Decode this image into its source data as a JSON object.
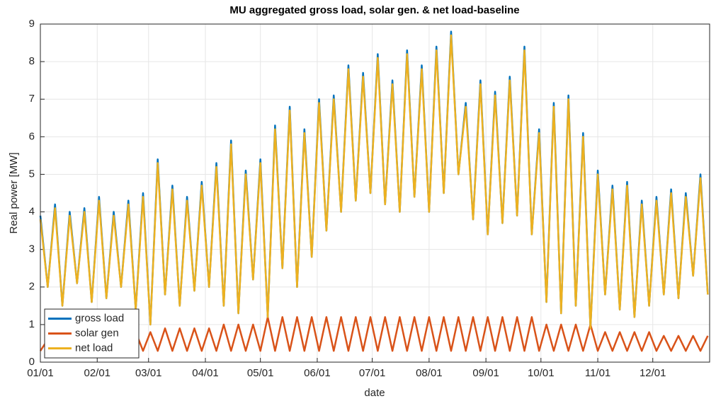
{
  "chart_data": {
    "type": "line",
    "title": "MU aggregated gross load, solar gen. & net load-baseline",
    "xlabel": "date",
    "ylabel": "Real power [MW]",
    "x": [
      0,
      4,
      8,
      12,
      16,
      20,
      24,
      28,
      32,
      36,
      40,
      44,
      48,
      52,
      56,
      60,
      64,
      68,
      72,
      76,
      80,
      84,
      88,
      92,
      96,
      100,
      104,
      108,
      112,
      116,
      120,
      124,
      128,
      132,
      136,
      140,
      144,
      148,
      152,
      156,
      160,
      164,
      168,
      172,
      176,
      180,
      184,
      188,
      192,
      196,
      200,
      204,
      208,
      212,
      216,
      220,
      224,
      228,
      232,
      236,
      240,
      244,
      248,
      252,
      256,
      260,
      264,
      268,
      272,
      276,
      280,
      284,
      288,
      292,
      296,
      300,
      304,
      308,
      312,
      316,
      320,
      324,
      328,
      332,
      336,
      340,
      344,
      348,
      352,
      356,
      360,
      364
    ],
    "series": [
      {
        "name": "gross load",
        "color": "#0072bd",
        "values": [
          3.9,
          2.0,
          4.2,
          1.5,
          4.0,
          2.1,
          4.1,
          1.6,
          4.4,
          1.7,
          4.0,
          2.0,
          4.3,
          1.4,
          4.5,
          1.0,
          5.4,
          1.8,
          4.7,
          1.5,
          4.4,
          1.9,
          4.8,
          2.0,
          5.3,
          1.5,
          5.9,
          1.3,
          5.1,
          2.2,
          5.4,
          1.2,
          6.3,
          2.5,
          6.8,
          2.0,
          6.2,
          2.8,
          7.0,
          3.5,
          7.1,
          4.0,
          7.9,
          4.3,
          7.7,
          4.5,
          8.2,
          4.2,
          7.5,
          4.0,
          8.3,
          4.4,
          7.9,
          4.0,
          8.4,
          4.5,
          8.8,
          5.0,
          6.9,
          3.8,
          7.5,
          3.4,
          7.2,
          3.7,
          7.6,
          3.9,
          8.4,
          3.4,
          6.2,
          1.6,
          6.9,
          1.3,
          7.1,
          1.5,
          6.1,
          0.9,
          5.1,
          1.8,
          4.7,
          1.4,
          4.8,
          1.2,
          4.3,
          1.5,
          4.4,
          1.8,
          4.6,
          1.7,
          4.5,
          2.3,
          5.0,
          1.8
        ]
      },
      {
        "name": "solar gen",
        "color": "#d95319",
        "values": [
          0.3,
          0.6,
          0.3,
          0.6,
          0.3,
          0.6,
          0.3,
          0.6,
          0.3,
          0.8,
          0.3,
          0.8,
          0.3,
          0.8,
          0.3,
          0.8,
          0.3,
          0.9,
          0.3,
          0.9,
          0.3,
          0.9,
          0.3,
          0.9,
          0.3,
          1.0,
          0.3,
          1.0,
          0.3,
          1.0,
          0.3,
          1.2,
          0.3,
          1.2,
          0.3,
          1.2,
          0.3,
          1.2,
          0.3,
          1.2,
          0.3,
          1.2,
          0.3,
          1.2,
          0.3,
          1.2,
          0.3,
          1.2,
          0.3,
          1.2,
          0.3,
          1.2,
          0.3,
          1.2,
          0.3,
          1.2,
          0.3,
          1.2,
          0.3,
          1.2,
          0.3,
          1.2,
          0.3,
          1.2,
          0.3,
          1.2,
          0.3,
          1.2,
          0.3,
          1.0,
          0.3,
          1.0,
          0.3,
          1.0,
          0.3,
          1.0,
          0.3,
          0.8,
          0.3,
          0.8,
          0.3,
          0.8,
          0.3,
          0.8,
          0.3,
          0.7,
          0.3,
          0.7,
          0.3,
          0.7,
          0.3,
          0.7
        ]
      },
      {
        "name": "net load",
        "color": "#edb120",
        "values": [
          3.8,
          2.0,
          4.1,
          1.5,
          3.9,
          2.1,
          4.0,
          1.6,
          4.3,
          1.7,
          3.9,
          2.0,
          4.2,
          1.4,
          4.4,
          1.0,
          5.3,
          1.8,
          4.6,
          1.5,
          4.3,
          1.9,
          4.7,
          2.0,
          5.2,
          1.5,
          5.8,
          1.3,
          5.0,
          2.2,
          5.3,
          1.2,
          6.2,
          2.5,
          6.7,
          2.0,
          6.1,
          2.8,
          6.9,
          3.5,
          7.0,
          4.0,
          7.8,
          4.3,
          7.6,
          4.5,
          8.1,
          4.2,
          7.4,
          4.0,
          8.2,
          4.4,
          7.8,
          4.0,
          8.3,
          4.5,
          8.7,
          5.0,
          6.8,
          3.8,
          7.4,
          3.4,
          7.1,
          3.7,
          7.5,
          3.9,
          8.3,
          3.4,
          6.1,
          1.6,
          6.8,
          1.3,
          7.0,
          1.5,
          6.0,
          0.9,
          5.0,
          1.8,
          4.6,
          1.4,
          4.7,
          1.2,
          4.2,
          1.5,
          4.3,
          1.8,
          4.5,
          1.7,
          4.4,
          2.3,
          4.9,
          1.8
        ]
      }
    ],
    "xlim": [
      0,
      365
    ],
    "xticks": [
      {
        "value": 0,
        "label": "01/01"
      },
      {
        "value": 31,
        "label": "02/01"
      },
      {
        "value": 59,
        "label": "03/01"
      },
      {
        "value": 90,
        "label": "04/01"
      },
      {
        "value": 120,
        "label": "05/01"
      },
      {
        "value": 151,
        "label": "06/01"
      },
      {
        "value": 181,
        "label": "07/01"
      },
      {
        "value": 212,
        "label": "08/01"
      },
      {
        "value": 243,
        "label": "09/01"
      },
      {
        "value": 273,
        "label": "10/01"
      },
      {
        "value": 304,
        "label": "11/01"
      },
      {
        "value": 334,
        "label": "12/01"
      }
    ],
    "ylim": [
      0,
      9
    ],
    "yticks": [
      0,
      1,
      2,
      3,
      4,
      5,
      6,
      7,
      8,
      9
    ],
    "grid": true,
    "legend": "lower left"
  }
}
